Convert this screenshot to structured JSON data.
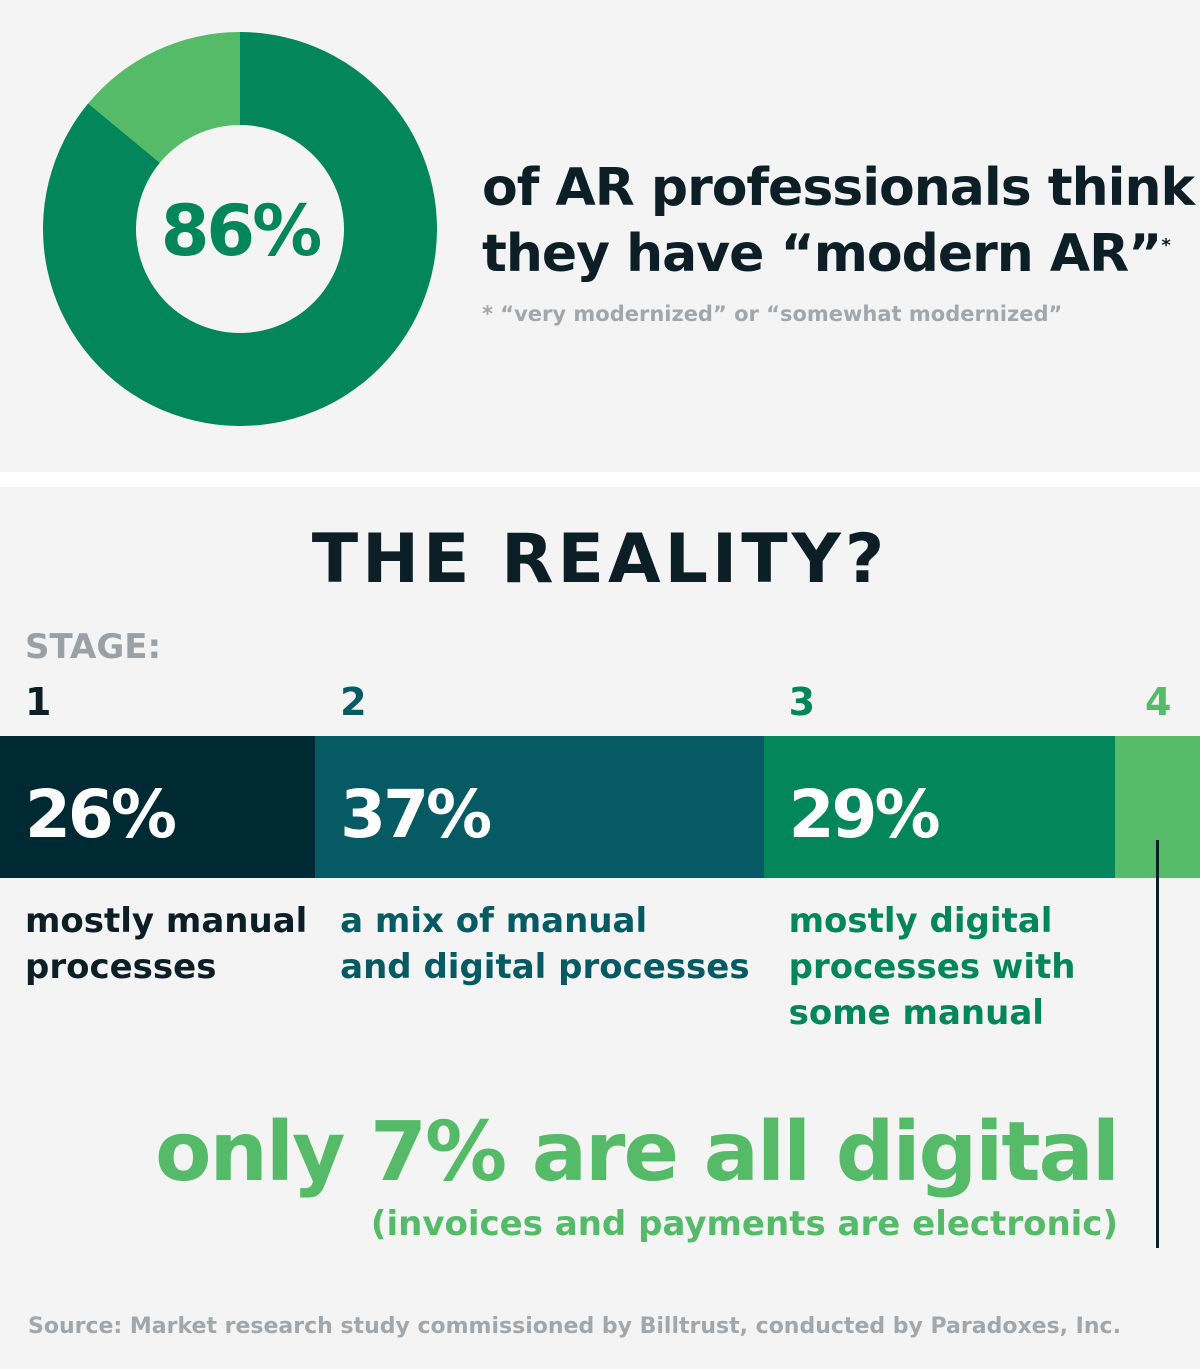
{
  "headline": {
    "line1": "of AR professionals think",
    "line2": "they have “modern AR”",
    "marker": "*",
    "footnote": "* “very modernized” or “somewhat modernized”"
  },
  "title": "THE REALITY?",
  "stage_label": "STAGE:",
  "source": "Source: Market research study commissioned by Billtrust, conducted by Paradoxes, Inc.",
  "callout": {
    "main": "only 7% are all digital",
    "sub": "(invoices and payments are electronic)"
  },
  "colors": {
    "background": "#f4f4f4",
    "stage1": "#002a33",
    "stage2": "#055a63",
    "stage3": "#02865a",
    "stage4": "#55bb68",
    "text_dark": "#0d1f26",
    "gray": "#a3a7aa"
  },
  "chart_data": [
    {
      "type": "pie",
      "variant": "donut",
      "center_label": "86%",
      "slices": [
        {
          "value": 86,
          "color": "#02865a"
        },
        {
          "value": 14,
          "color": "#55bb68"
        }
      ]
    },
    {
      "type": "bar",
      "variant": "100% stacked horizontal",
      "categories": [
        "1",
        "2",
        "3",
        "4"
      ],
      "values": [
        26,
        37,
        29,
        7
      ],
      "value_labels": [
        "26%",
        "37%",
        "29%",
        ""
      ],
      "descriptions": [
        [
          "mostly manual",
          "processes"
        ],
        [
          "a mix of manual",
          "and digital processes"
        ],
        [
          "mostly digital",
          "processes with",
          "some manual"
        ],
        []
      ],
      "colors": [
        "#002a33",
        "#055a63",
        "#02865a",
        "#55bb68"
      ],
      "number_colors": [
        "#0d1f26",
        "#055a63",
        "#02865a",
        "#55bb68"
      ]
    }
  ]
}
